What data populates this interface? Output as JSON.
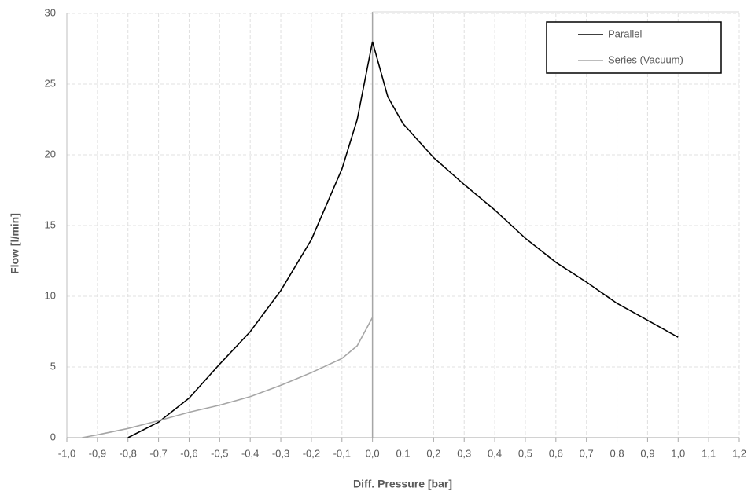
{
  "chart_data": {
    "type": "line",
    "xlabel": "Diff. Pressure [bar]",
    "ylabel": "Flow [l/min]",
    "xlim": [
      -1.0,
      1.2
    ],
    "ylim": [
      0,
      30
    ],
    "xticks": [
      {
        "value": -1.0,
        "label": "-1,0"
      },
      {
        "value": -0.9,
        "label": "-0,9"
      },
      {
        "value": -0.8,
        "label": "-0,8"
      },
      {
        "value": -0.7,
        "label": "-0,7"
      },
      {
        "value": -0.6,
        "label": "-0,6"
      },
      {
        "value": -0.5,
        "label": "-0,5"
      },
      {
        "value": -0.4,
        "label": "-0,4"
      },
      {
        "value": -0.3,
        "label": "-0,3"
      },
      {
        "value": -0.2,
        "label": "-0,2"
      },
      {
        "value": -0.1,
        "label": "-0,1"
      },
      {
        "value": 0,
        "label": "0,0"
      },
      {
        "value": 0.1,
        "label": "0,1"
      },
      {
        "value": 0.2,
        "label": "0,2"
      },
      {
        "value": 0.3,
        "label": "0,3"
      },
      {
        "value": 0.4,
        "label": "0,4"
      },
      {
        "value": 0.5,
        "label": "0,5"
      },
      {
        "value": 0.6,
        "label": "0,6"
      },
      {
        "value": 0.7,
        "label": "0,7"
      },
      {
        "value": 0.8,
        "label": "0,8"
      },
      {
        "value": 0.9,
        "label": "0,9"
      },
      {
        "value": 1.0,
        "label": "1,0"
      },
      {
        "value": 1.1,
        "label": "1,1"
      },
      {
        "value": 1.2,
        "label": "1,2"
      }
    ],
    "yticks": [
      0,
      5,
      10,
      15,
      20,
      25,
      30
    ],
    "grid": true,
    "legend": "upper right",
    "series": [
      {
        "name": "Parallel",
        "color": "#000000",
        "x": [
          -0.8,
          -0.7,
          -0.6,
          -0.5,
          -0.4,
          -0.3,
          -0.2,
          -0.1,
          -0.05,
          0,
          0.05,
          0.1,
          0.2,
          0.3,
          0.4,
          0.5,
          0.6,
          0.7,
          0.8,
          0.9,
          1.0
        ],
        "values": [
          0,
          1.1,
          2.8,
          5.2,
          7.5,
          10.4,
          14,
          19,
          22.5,
          28,
          24.1,
          22.2,
          19.8,
          17.9,
          16.1,
          14.1,
          12.4,
          11,
          9.5,
          8.3,
          7.1
        ]
      },
      {
        "name": "Series (Vacuum)",
        "color": "#a6a6a6",
        "x": [
          -0.95,
          -0.9,
          -0.8,
          -0.7,
          -0.6,
          -0.5,
          -0.4,
          -0.3,
          -0.2,
          -0.1,
          -0.05,
          0
        ],
        "values": [
          0,
          0.2,
          0.65,
          1.2,
          1.8,
          2.3,
          2.9,
          3.7,
          4.6,
          5.6,
          6.5,
          8.5
        ]
      }
    ]
  }
}
